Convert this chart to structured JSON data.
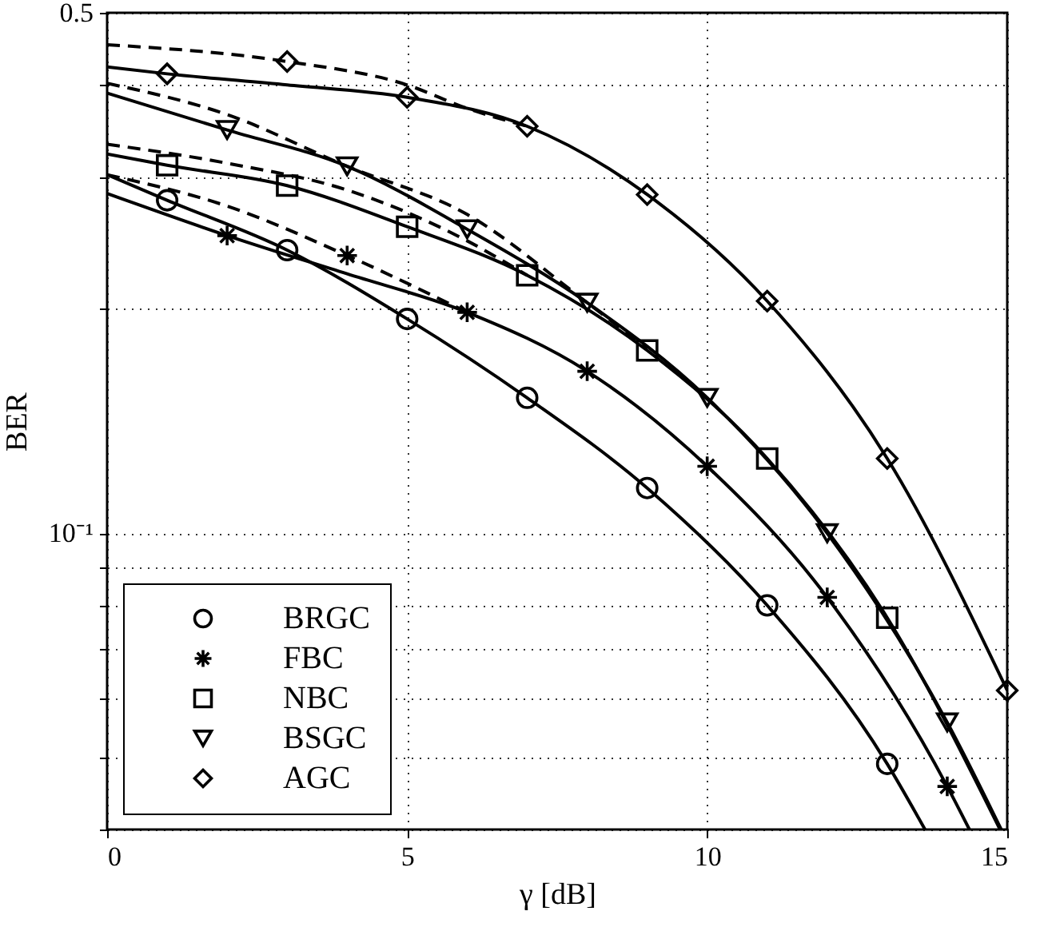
{
  "chart_data": {
    "type": "line",
    "xlabel": "γ [dB]",
    "ylabel": "BER",
    "log": "y",
    "grid": true,
    "legend": "bottom left",
    "xlim": [
      0,
      15
    ],
    "xticks": [
      0,
      5,
      10,
      15
    ],
    "ylim": [
      0.04,
      0.5
    ],
    "yticks": [
      {
        "value": 0.04,
        "label": null
      },
      {
        "value": 0.05,
        "label": null
      },
      {
        "value": 0.06,
        "label": null
      },
      {
        "value": 0.07,
        "label": null
      },
      {
        "value": 0.08,
        "label": null
      },
      {
        "value": 0.09,
        "label": null
      },
      {
        "value": 0.1,
        "label": "10⁻¹"
      },
      {
        "value": 0.2,
        "label": null
      },
      {
        "value": 0.3,
        "label": null
      },
      {
        "value": 0.4,
        "label": null
      },
      {
        "value": 0.5,
        "label": "0.5"
      }
    ],
    "series": [
      {
        "type": "line",
        "color": "#000000",
        "line_style": "solid",
        "x": [
          0,
          1,
          3,
          5,
          7,
          9,
          11,
          13,
          13.63
        ],
        "values": [
          0.303,
          0.28,
          0.24,
          0.194,
          0.152,
          0.115,
          0.08,
          0.049,
          0.04
        ]
      },
      {
        "type": "line",
        "color": "#000000",
        "line_style": "solid",
        "x": [
          0,
          2,
          4,
          6,
          8,
          10,
          12,
          14,
          14.37
        ],
        "values": [
          0.286,
          0.251,
          0.223,
          0.198,
          0.165,
          0.123,
          0.082,
          0.0457,
          0.04
        ]
      },
      {
        "type": "line",
        "color": "#000000",
        "line_style": "solid",
        "x": [
          0,
          1,
          3,
          5,
          7,
          9,
          11,
          13,
          14.88
        ],
        "values": [
          0.323,
          0.312,
          0.293,
          0.258,
          0.222,
          0.176,
          0.126,
          0.077,
          0.04
        ]
      },
      {
        "type": "line",
        "color": "#000000",
        "line_style": "solid",
        "x": [
          0,
          2,
          4,
          6,
          8,
          10,
          12,
          14,
          14.9
        ],
        "values": [
          0.39,
          0.348,
          0.311,
          0.256,
          0.204,
          0.152,
          0.1,
          0.0557,
          0.04
        ]
      },
      {
        "type": "line",
        "color": "#000000",
        "line_style": "solid",
        "x": [
          0,
          1,
          3,
          5,
          7,
          9,
          11,
          13,
          15
        ],
        "values": [
          0.423,
          0.414,
          0.4,
          0.385,
          0.352,
          0.285,
          0.205,
          0.126,
          0.0615
        ]
      },
      {
        "type": "line",
        "color": "#000000",
        "line_style": "dashed",
        "x": [
          0,
          2,
          4,
          6
        ],
        "values": [
          0.303,
          0.275,
          0.236,
          0.198
        ]
      },
      {
        "type": "line",
        "color": "#000000",
        "line_style": "dashed",
        "x": [
          0,
          2,
          4,
          6,
          7
        ],
        "values": [
          0.333,
          0.314,
          0.289,
          0.247,
          0.222
        ]
      },
      {
        "type": "line",
        "color": "#000000",
        "line_style": "dashed",
        "x": [
          0,
          2,
          4,
          6,
          8,
          9
        ],
        "values": [
          0.402,
          0.365,
          0.311,
          0.268,
          0.204,
          0.177
        ]
      },
      {
        "type": "line",
        "color": "#000000",
        "line_style": "dashed",
        "x": [
          0,
          3,
          5,
          6,
          7
        ],
        "values": [
          0.453,
          0.43,
          0.4,
          0.372,
          0.352
        ]
      },
      {
        "type": "scatter",
        "name": "BRGC",
        "color": "#000000",
        "marker": "circle",
        "x": [
          1,
          3,
          5,
          7,
          9,
          11,
          13
        ],
        "values": [
          0.28,
          0.24,
          0.194,
          0.152,
          0.115,
          0.08,
          0.049
        ]
      },
      {
        "type": "scatter",
        "name": "FBC",
        "color": "#000000",
        "marker": "cross",
        "x": [
          2,
          4,
          6,
          8,
          10,
          12,
          14
        ],
        "values": [
          0.251,
          0.236,
          0.198,
          0.165,
          0.123,
          0.082,
          0.0457
        ]
      },
      {
        "type": "scatter",
        "name": "NBC",
        "color": "#000000",
        "marker": "square",
        "x": [
          1,
          3,
          5,
          7,
          9,
          11,
          13
        ],
        "values": [
          0.312,
          0.293,
          0.258,
          0.222,
          0.176,
          0.126,
          0.077
        ]
      },
      {
        "type": "scatter",
        "name": "BSGC",
        "color": "#000000",
        "marker": "triangle",
        "x": [
          2,
          4,
          6,
          8,
          10,
          12,
          14
        ],
        "values": [
          0.348,
          0.311,
          0.256,
          0.204,
          0.152,
          0.1,
          0.0557
        ]
      },
      {
        "type": "scatter",
        "name": "AGC",
        "color": "#000000",
        "marker": "diamond",
        "x": [
          1,
          3,
          5,
          7,
          9,
          11,
          13,
          15
        ],
        "values": [
          0.414,
          0.43,
          0.385,
          0.352,
          0.285,
          0.205,
          0.126,
          0.0615
        ]
      }
    ]
  }
}
